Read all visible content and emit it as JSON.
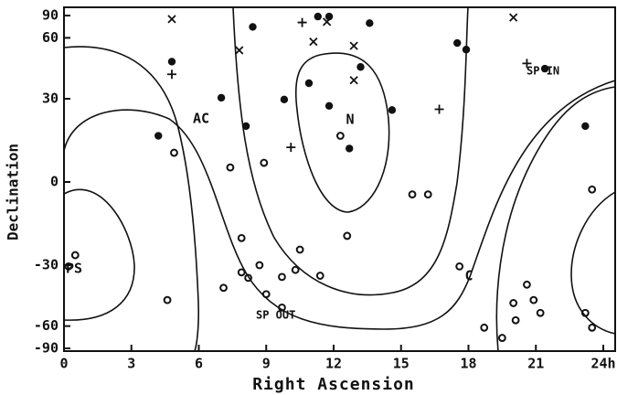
{
  "chart_data": {
    "type": "scatter",
    "x_label": "Right Ascension",
    "y_label": "Declination",
    "xlim": [
      0,
      24
    ],
    "xticks": [
      0,
      3,
      6,
      9,
      12,
      15,
      18,
      21,
      {
        "value": 24,
        "label": "24h"
      }
    ],
    "ylim": [
      -90,
      90
    ],
    "yticks": [
      90,
      60,
      30,
      0,
      -30,
      -60,
      -90
    ],
    "y_scale": "sine",
    "series": [
      {
        "marker": "filled-circle",
        "color": "#111111",
        "x": [
          11.3,
          11.8,
          8.4,
          13.6,
          4.8,
          7.0,
          10.9,
          13.2,
          9.8,
          11.8,
          14.6,
          17.5,
          17.9,
          21.4,
          8.1,
          4.2,
          12.7,
          23.2
        ],
        "values": [
          83.7,
          83.7,
          68.7,
          72.6,
          46.3,
          30.4,
          36.4,
          43.7,
          29.7,
          27.2,
          25.6,
          56.6,
          52.7,
          42.9,
          19.6,
          16.1,
          11.6,
          19.6
        ]
      },
      {
        "marker": "open-circle",
        "color": "#111111",
        "x": [
          4.9,
          7.4,
          8.9,
          12.3,
          12.6,
          15.5,
          16.2,
          23.5,
          0.5,
          0.2,
          7.9,
          7.9,
          8.2,
          8.7,
          9.0,
          7.1,
          9.7,
          10.3,
          10.5,
          11.4,
          9.7,
          4.6,
          17.6,
          20.0,
          18.7,
          19.5,
          20.1,
          20.6,
          20.9,
          21.2,
          23.2,
          23.5
        ],
        "values": [
          10.1,
          5.0,
          6.6,
          16.1,
          -18.9,
          -4.3,
          -4.3,
          -2.6,
          -26.1,
          -30.5,
          -19.7,
          -32.9,
          -35.2,
          -30.0,
          -42.4,
          -39.5,
          -34.8,
          -31.9,
          -24.0,
          -34.3,
          -49.0,
          -45.2,
          -30.5,
          -46.7,
          -61.1,
          -69.6,
          -56.2,
          -38.1,
          -45.2,
          -51.9,
          -51.9,
          -61.1
        ]
      },
      {
        "marker": "plus",
        "color": "#111111",
        "x": [
          10.6,
          4.8,
          10.1,
          16.7,
          20.6
        ],
        "values": [
          73.4,
          40.3,
          12.0,
          25.9,
          45.4
        ]
      },
      {
        "marker": "cross",
        "color": "#111111",
        "x": [
          4.8,
          11.7,
          7.8,
          11.1,
          12.9,
          12.9,
          20.0
        ],
        "values": [
          78.2,
          74.2,
          52.3,
          57.4,
          54.9,
          37.7,
          81.3
        ]
      }
    ],
    "annotations": [
      "AC",
      "N",
      "C",
      "SP IN",
      "SP OUT",
      "PS"
    ]
  }
}
